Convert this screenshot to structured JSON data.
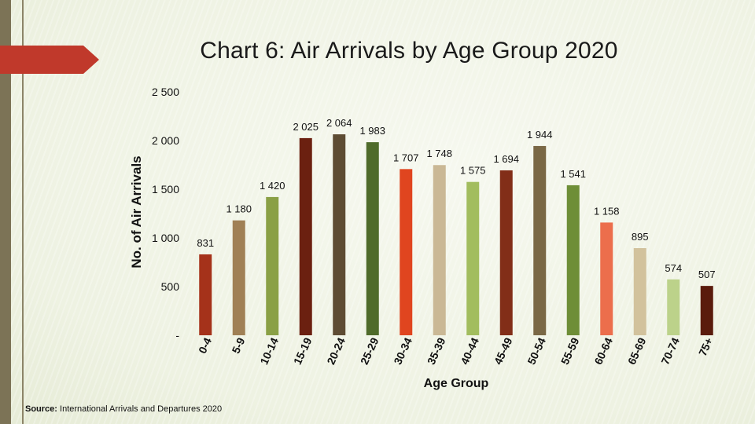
{
  "title": "Chart 6:  Air Arrivals by Age Group 2020",
  "source": {
    "label": "Source:",
    "text": " International Arrivals and Departures 2020"
  },
  "chart_data": {
    "type": "bar",
    "xlabel": "Age Group",
    "ylabel": "No. of Air Arrivals",
    "ylim": [
      0,
      2500
    ],
    "yticks": [
      0,
      500,
      1000,
      1500,
      2000,
      2500
    ],
    "ytick_labels": [
      "-",
      "500",
      "1 000",
      "1 500",
      "2 000",
      "2 500"
    ],
    "grid": false,
    "legend": "none",
    "categories": [
      "0-4",
      "5-9",
      "10-14",
      "15-19",
      "20-24",
      "25-29",
      "30-34",
      "35-39",
      "40-44",
      "45-49",
      "50-54",
      "55-59",
      "60-64",
      "65-69",
      "70-74",
      "75+"
    ],
    "values": [
      831,
      1180,
      1420,
      2025,
      2064,
      1983,
      1707,
      1748,
      1575,
      1694,
      1944,
      1541,
      1158,
      895,
      574,
      507
    ],
    "value_labels": [
      "831",
      "1 180",
      "1 420",
      "2 025",
      "2 064",
      "1 983",
      "1 707",
      "1 748",
      "1 575",
      "1 694",
      "1 944",
      "1 541",
      "1 158",
      "895",
      "574",
      "507"
    ],
    "colors": [
      "#a5321a",
      "#a08055",
      "#8aa045",
      "#6b2010",
      "#5e4c33",
      "#4f6b2a",
      "#e0451f",
      "#cab895",
      "#a2bd5e",
      "#822e18",
      "#7a6845",
      "#6e8e37",
      "#ec6e4c",
      "#d2c29c",
      "#bcd28a",
      "#5a1b0c"
    ]
  }
}
